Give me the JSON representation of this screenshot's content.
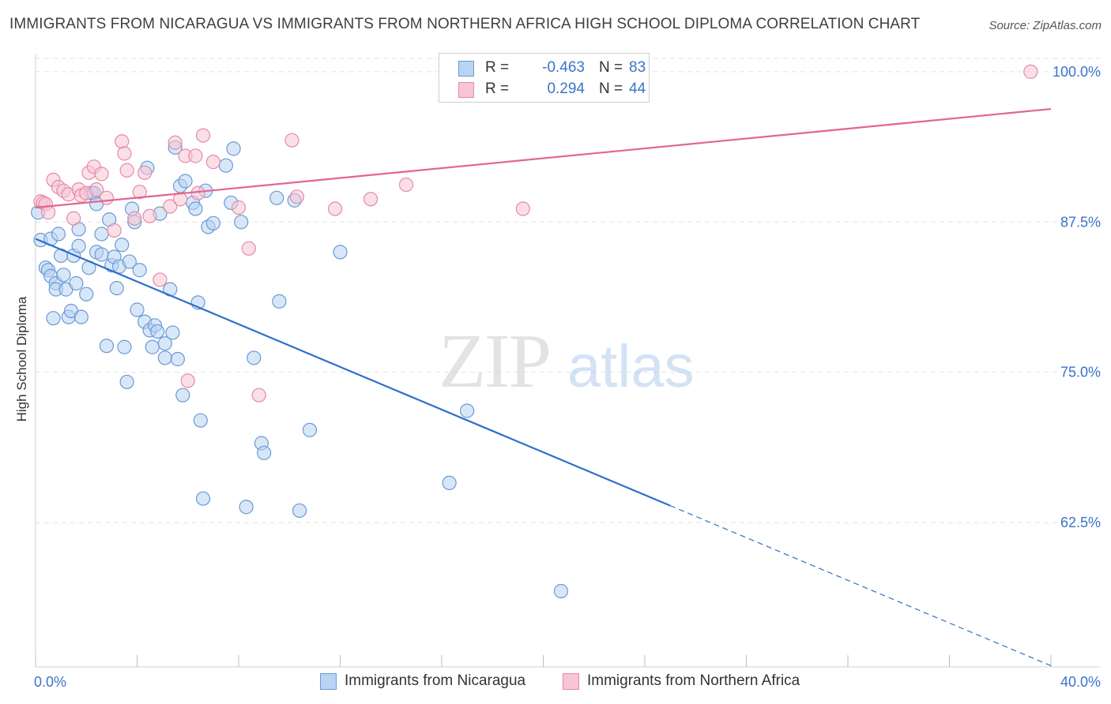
{
  "title": "IMMIGRANTS FROM NICARAGUA VS IMMIGRANTS FROM NORTHERN AFRICA HIGH SCHOOL DIPLOMA CORRELATION CHART",
  "source": "Source: ZipAtlas.com",
  "watermark": {
    "zip": "ZIP",
    "atlas": "atlas"
  },
  "legend": {
    "r_label": "R =",
    "n_label": "N =",
    "rows": [
      {
        "name": "Immigrants from Nicaragua",
        "r": "-0.463",
        "n": "83",
        "fill": "#b8d4f2",
        "stroke": "#6a9ad6"
      },
      {
        "name": "Immigrants from Northern Africa",
        "r": "0.294",
        "n": "44",
        "fill": "#f7c5d4",
        "stroke": "#e48aa8"
      }
    ]
  },
  "chart_data": {
    "type": "scatter",
    "title": "IMMIGRANTS FROM NICARAGUA VS IMMIGRANTS FROM NORTHERN AFRICA HIGH SCHOOL DIPLOMA CORRELATION CHART",
    "xlabel": "",
    "ylabel": "High School Diploma",
    "xlim": [
      0,
      40
    ],
    "ylim": [
      50.5,
      101.5
    ],
    "x_tick_labels": [
      "0.0%",
      "40.0%"
    ],
    "y_ticks": [
      62.5,
      75.0,
      87.5,
      100.0
    ],
    "y_tick_labels": [
      "62.5%",
      "75.0%",
      "87.5%",
      "100.0%"
    ],
    "grid": true,
    "legend_position": "top-center",
    "series": [
      {
        "name": "Immigrants from Nicaragua",
        "color": "#6a9ad6",
        "fill": "#b8d4f2",
        "trend_color": "#2f6fcc",
        "trend": {
          "x_start": 0.0,
          "y_start": 86.1,
          "x_solid_end": 25.0,
          "x_end": 40.0,
          "slope": -0.8875
        },
        "points": [
          [
            0.1,
            88.3
          ],
          [
            0.2,
            86.0
          ],
          [
            0.4,
            83.7
          ],
          [
            0.5,
            83.5
          ],
          [
            0.6,
            83.0
          ],
          [
            0.6,
            86.1
          ],
          [
            0.7,
            79.5
          ],
          [
            0.8,
            82.4
          ],
          [
            0.8,
            81.9
          ],
          [
            0.9,
            86.5
          ],
          [
            1.0,
            84.7
          ],
          [
            1.1,
            83.1
          ],
          [
            1.2,
            81.9
          ],
          [
            1.3,
            79.6
          ],
          [
            1.4,
            80.1
          ],
          [
            1.5,
            84.7
          ],
          [
            1.6,
            82.4
          ],
          [
            1.7,
            86.9
          ],
          [
            1.7,
            85.5
          ],
          [
            1.8,
            79.6
          ],
          [
            2.0,
            81.5
          ],
          [
            2.1,
            83.7
          ],
          [
            2.2,
            89.9
          ],
          [
            2.3,
            89.9
          ],
          [
            2.4,
            85.0
          ],
          [
            2.4,
            89.0
          ],
          [
            2.6,
            84.8
          ],
          [
            2.6,
            86.5
          ],
          [
            2.8,
            77.2
          ],
          [
            2.9,
            87.7
          ],
          [
            3.0,
            83.9
          ],
          [
            3.1,
            84.6
          ],
          [
            3.2,
            82.0
          ],
          [
            3.3,
            83.8
          ],
          [
            3.4,
            85.6
          ],
          [
            3.5,
            77.1
          ],
          [
            3.6,
            74.2
          ],
          [
            3.7,
            84.2
          ],
          [
            3.8,
            88.6
          ],
          [
            3.9,
            87.5
          ],
          [
            4.0,
            80.2
          ],
          [
            4.1,
            83.5
          ],
          [
            4.3,
            79.2
          ],
          [
            4.4,
            92.0
          ],
          [
            4.5,
            78.5
          ],
          [
            4.6,
            77.1
          ],
          [
            4.7,
            78.9
          ],
          [
            4.8,
            78.4
          ],
          [
            4.9,
            88.2
          ],
          [
            5.1,
            77.4
          ],
          [
            5.1,
            76.2
          ],
          [
            5.3,
            81.9
          ],
          [
            5.4,
            78.3
          ],
          [
            5.5,
            93.7
          ],
          [
            5.6,
            76.1
          ],
          [
            5.7,
            90.5
          ],
          [
            5.8,
            73.1
          ],
          [
            5.9,
            90.9
          ],
          [
            6.2,
            89.1
          ],
          [
            6.3,
            88.6
          ],
          [
            6.4,
            80.8
          ],
          [
            6.5,
            71.0
          ],
          [
            6.6,
            64.5
          ],
          [
            6.7,
            90.1
          ],
          [
            6.8,
            87.1
          ],
          [
            7.0,
            87.4
          ],
          [
            7.5,
            92.2
          ],
          [
            7.7,
            89.1
          ],
          [
            7.8,
            93.6
          ],
          [
            8.1,
            87.5
          ],
          [
            8.3,
            63.8
          ],
          [
            8.6,
            76.2
          ],
          [
            8.9,
            69.1
          ],
          [
            9.0,
            68.3
          ],
          [
            9.5,
            89.5
          ],
          [
            9.6,
            80.9
          ],
          [
            10.2,
            89.3
          ],
          [
            10.4,
            63.5
          ],
          [
            10.8,
            70.2
          ],
          [
            12.0,
            85.0
          ],
          [
            16.3,
            65.8
          ],
          [
            17.0,
            71.8
          ],
          [
            20.7,
            56.8
          ]
        ]
      },
      {
        "name": "Immigrants from Northern Africa",
        "color": "#e48aa8",
        "fill": "#f7c5d4",
        "trend_color": "#e06690",
        "trend": {
          "x_start": 0.0,
          "y_start": 88.7,
          "x_end": 40.0,
          "y_end": 96.9
        },
        "points": [
          [
            0.2,
            89.2
          ],
          [
            0.3,
            89.1
          ],
          [
            0.4,
            89.0
          ],
          [
            0.5,
            88.3
          ],
          [
            0.7,
            91.0
          ],
          [
            0.9,
            90.4
          ],
          [
            1.1,
            90.1
          ],
          [
            1.3,
            89.8
          ],
          [
            1.5,
            87.8
          ],
          [
            1.7,
            90.2
          ],
          [
            1.8,
            89.7
          ],
          [
            2.0,
            89.9
          ],
          [
            2.1,
            91.6
          ],
          [
            2.3,
            92.1
          ],
          [
            2.4,
            90.2
          ],
          [
            2.6,
            91.5
          ],
          [
            2.8,
            89.5
          ],
          [
            3.1,
            86.8
          ],
          [
            3.4,
            94.2
          ],
          [
            3.5,
            93.2
          ],
          [
            3.6,
            91.8
          ],
          [
            3.9,
            87.8
          ],
          [
            4.1,
            90.0
          ],
          [
            4.3,
            91.6
          ],
          [
            4.5,
            88.0
          ],
          [
            4.9,
            82.7
          ],
          [
            5.3,
            88.8
          ],
          [
            5.5,
            94.1
          ],
          [
            5.7,
            89.4
          ],
          [
            5.9,
            93.0
          ],
          [
            6.0,
            74.3
          ],
          [
            6.3,
            93.0
          ],
          [
            6.4,
            89.9
          ],
          [
            6.6,
            94.7
          ],
          [
            7.0,
            92.5
          ],
          [
            8.0,
            88.7
          ],
          [
            8.4,
            85.3
          ],
          [
            8.8,
            73.1
          ],
          [
            10.1,
            94.3
          ],
          [
            10.3,
            89.6
          ],
          [
            11.8,
            88.6
          ],
          [
            13.2,
            89.4
          ],
          [
            14.6,
            90.6
          ],
          [
            19.2,
            88.6
          ],
          [
            39.2,
            100.0
          ]
        ]
      }
    ]
  }
}
